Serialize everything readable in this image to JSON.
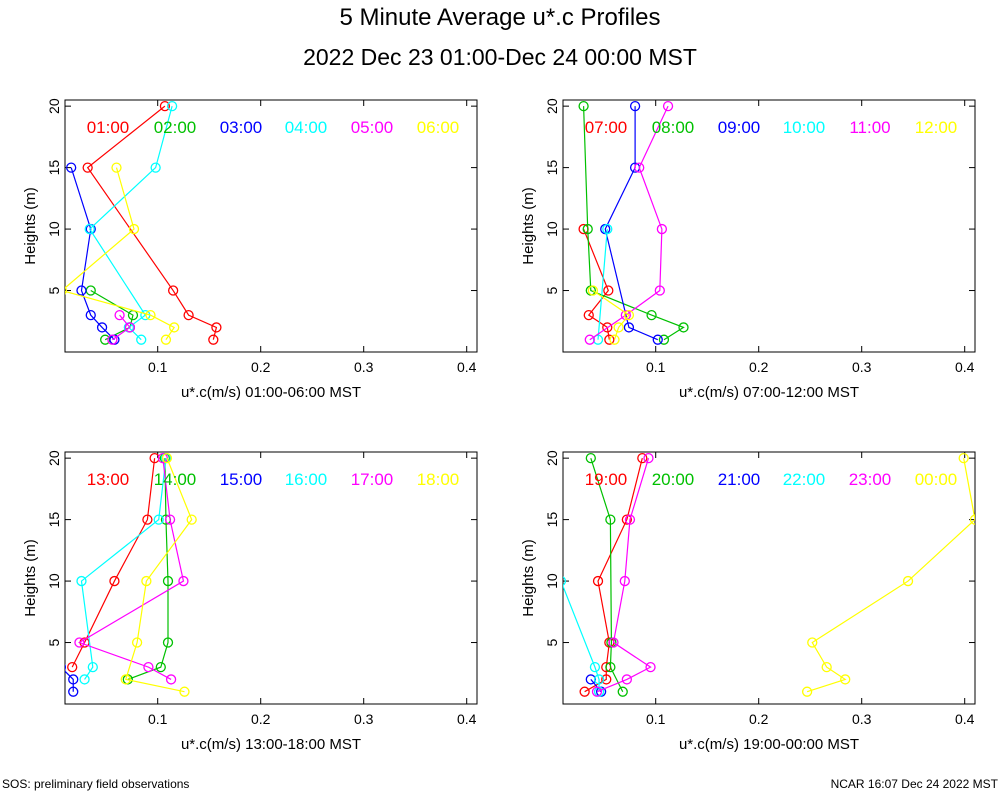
{
  "title": "5 Minute Average u*.c Profiles",
  "subtitle": "2022 Dec 23 01:00-Dec 24 00:00 MST",
  "footer_left": "SOS: preliminary field observations",
  "footer_right": "NCAR 16:07 Dec 24 2022 MST",
  "colors": [
    "#ff0000",
    "#00c000",
    "#0000ff",
    "#00ffff",
    "#ff00ff",
    "#ffff00"
  ],
  "chart_data": [
    {
      "type": "line",
      "xlabel": "u*.c(m/s) 01:00-06:00 MST",
      "ylabel": "Heights (m)",
      "xlim": [
        0.01,
        0.41
      ],
      "ylim": [
        0,
        20.5
      ],
      "xticks": [
        "0.1",
        "0.2",
        "0.3",
        "0.4"
      ],
      "yticks": [
        "5",
        "10",
        "15",
        "20"
      ],
      "series": [
        {
          "name": "01:00",
          "points": [
            [
              0.154,
              1
            ],
            [
              0.157,
              2
            ],
            [
              0.13,
              3
            ],
            [
              0.115,
              5
            ],
            [
              0.032,
              15
            ],
            [
              0.107,
              20
            ]
          ]
        },
        {
          "name": "02:00",
          "points": [
            [
              0.049,
              1
            ],
            [
              0.073,
              2
            ],
            [
              0.076,
              3
            ],
            [
              0.035,
              5
            ]
          ]
        },
        {
          "name": "03:00",
          "points": [
            [
              0.058,
              1
            ],
            [
              0.046,
              2
            ],
            [
              0.035,
              3
            ],
            [
              0.026,
              5
            ],
            [
              0.035,
              10
            ],
            [
              0.016,
              15
            ]
          ]
        },
        {
          "name": "04:00",
          "points": [
            [
              0.084,
              1
            ],
            [
              0.072,
              2
            ],
            [
              0.088,
              3
            ],
            [
              0.034,
              10
            ],
            [
              0.098,
              15
            ],
            [
              0.114,
              20
            ]
          ]
        },
        {
          "name": "05:00",
          "points": [
            [
              0.056,
              1
            ],
            [
              0.073,
              2
            ],
            [
              0.063,
              3
            ]
          ]
        },
        {
          "name": "06:00",
          "points": [
            [
              0.108,
              1
            ],
            [
              0.116,
              2
            ],
            [
              0.093,
              3
            ],
            [
              0.007,
              5
            ],
            [
              0.077,
              10
            ],
            [
              0.06,
              15
            ]
          ]
        }
      ]
    },
    {
      "type": "line",
      "xlabel": "u*.c(m/s) 07:00-12:00 MST",
      "ylabel": "Heights (m)",
      "xlim": [
        0.01,
        0.41
      ],
      "ylim": [
        0,
        20.5
      ],
      "xticks": [
        "0.1",
        "0.2",
        "0.3",
        "0.4"
      ],
      "yticks": [
        "5",
        "10",
        "15",
        "20"
      ],
      "series": [
        {
          "name": "07:00",
          "points": [
            [
              0.055,
              1
            ],
            [
              0.053,
              2
            ],
            [
              0.035,
              3
            ],
            [
              0.054,
              5
            ],
            [
              0.03,
              10
            ]
          ]
        },
        {
          "name": "08:00",
          "points": [
            [
              0.108,
              1
            ],
            [
              0.127,
              2
            ],
            [
              0.096,
              3
            ],
            [
              0.037,
              5
            ],
            [
              0.034,
              10
            ],
            [
              0.03,
              20
            ]
          ]
        },
        {
          "name": "09:00",
          "points": [
            [
              0.102,
              1
            ],
            [
              0.074,
              2
            ],
            [
              0.051,
              10
            ],
            [
              0.08,
              15
            ],
            [
              0.08,
              20
            ]
          ]
        },
        {
          "name": "10:00",
          "points": [
            [
              0.044,
              1
            ],
            [
              0.053,
              10
            ]
          ]
        },
        {
          "name": "11:00",
          "points": [
            [
              0.036,
              1
            ],
            [
              0.071,
              3
            ],
            [
              0.104,
              5
            ],
            [
              0.106,
              10
            ],
            [
              0.084,
              15
            ],
            [
              0.112,
              20
            ]
          ]
        },
        {
          "name": "12:00",
          "points": [
            [
              0.06,
              1
            ],
            [
              0.064,
              2
            ],
            [
              0.074,
              3
            ],
            [
              0.039,
              5
            ]
          ]
        }
      ]
    },
    {
      "type": "line",
      "xlabel": "u*.c(m/s) 13:00-18:00 MST",
      "ylabel": "Heights (m)",
      "xlim": [
        0.01,
        0.41
      ],
      "ylim": [
        0,
        20.5
      ],
      "xticks": [
        "0.1",
        "0.2",
        "0.3",
        "0.4"
      ],
      "yticks": [
        "5",
        "10",
        "15",
        "20"
      ],
      "series": [
        {
          "name": "13:00",
          "points": [
            [
              0.017,
              3
            ],
            [
              0.029,
              5
            ],
            [
              0.058,
              10
            ],
            [
              0.09,
              15
            ],
            [
              0.097,
              20
            ]
          ]
        },
        {
          "name": "14:00",
          "points": [
            [
              0.071,
              2
            ],
            [
              0.103,
              3
            ],
            [
              0.11,
              5
            ],
            [
              0.11,
              10
            ],
            [
              0.108,
              15
            ],
            [
              0.107,
              20
            ]
          ]
        },
        {
          "name": "15:00",
          "points": [
            [
              0.018,
              1
            ],
            [
              0.018,
              2
            ],
            [
              0.006,
              3
            ]
          ]
        },
        {
          "name": "16:00",
          "points": [
            [
              0.029,
              2
            ],
            [
              0.037,
              3
            ],
            [
              0.026,
              10
            ],
            [
              0.101,
              15
            ],
            [
              0.108,
              20
            ]
          ]
        },
        {
          "name": "17:00",
          "points": [
            [
              0.113,
              2
            ],
            [
              0.091,
              3
            ],
            [
              0.024,
              5
            ],
            [
              0.125,
              10
            ],
            [
              0.112,
              15
            ],
            [
              0.105,
              20
            ]
          ]
        },
        {
          "name": "18:00",
          "points": [
            [
              0.126,
              1
            ],
            [
              0.069,
              2
            ],
            [
              0.08,
              5
            ],
            [
              0.089,
              10
            ],
            [
              0.133,
              15
            ],
            [
              0.109,
              20
            ]
          ]
        }
      ]
    },
    {
      "type": "line",
      "xlabel": "u*.c(m/s) 19:00-00:00 MST",
      "ylabel": "Heights (m)",
      "xlim": [
        0.01,
        0.41
      ],
      "ylim": [
        0,
        20.5
      ],
      "xticks": [
        "0.1",
        "0.2",
        "0.3",
        "0.4"
      ],
      "yticks": [
        "5",
        "10",
        "15",
        "20"
      ],
      "series": [
        {
          "name": "19:00",
          "points": [
            [
              0.031,
              1
            ],
            [
              0.052,
              2
            ],
            [
              0.052,
              3
            ],
            [
              0.055,
              5
            ],
            [
              0.044,
              10
            ],
            [
              0.072,
              15
            ],
            [
              0.087,
              20
            ]
          ]
        },
        {
          "name": "20:00",
          "points": [
            [
              0.068,
              1
            ],
            [
              0.056,
              3
            ],
            [
              0.057,
              5
            ],
            [
              0.056,
              15
            ],
            [
              0.037,
              20
            ]
          ]
        },
        {
          "name": "21:00",
          "points": [
            [
              0.047,
              1
            ],
            [
              0.037,
              2
            ]
          ]
        },
        {
          "name": "22:00",
          "points": [
            [
              0.045,
              1
            ],
            [
              0.045,
              2
            ],
            [
              0.041,
              3
            ],
            [
              0.008,
              10
            ]
          ]
        },
        {
          "name": "23:00",
          "points": [
            [
              0.043,
              1
            ],
            [
              0.072,
              2
            ],
            [
              0.095,
              3
            ],
            [
              0.059,
              5
            ],
            [
              0.07,
              10
            ],
            [
              0.075,
              15
            ],
            [
              0.093,
              20
            ]
          ]
        },
        {
          "name": "00:00",
          "points": [
            [
              0.247,
              1
            ],
            [
              0.284,
              2
            ],
            [
              0.266,
              3
            ],
            [
              0.252,
              5
            ],
            [
              0.345,
              10
            ],
            [
              0.41,
              15
            ],
            [
              0.399,
              20
            ]
          ]
        }
      ]
    }
  ]
}
